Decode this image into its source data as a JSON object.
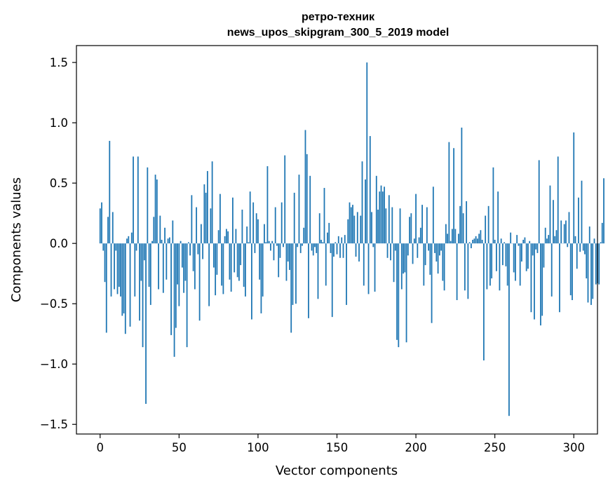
{
  "chart_data": {
    "type": "bar",
    "title": "ретро-техник",
    "subtitle": "news_upos_skipgram_300_5_2019 model",
    "xlabel": "Vector components",
    "ylabel": "Components values",
    "xlim": [
      -15,
      315
    ],
    "ylim": [
      -1.58,
      1.64
    ],
    "xticks": [
      0,
      50,
      100,
      150,
      200,
      250,
      300
    ],
    "xtick_labels": [
      "0",
      "50",
      "100",
      "150",
      "200",
      "250",
      "300"
    ],
    "yticks": [
      -1.5,
      -1.0,
      -0.5,
      0.0,
      0.5,
      1.0,
      1.5
    ],
    "ytick_labels": [
      "−1.5",
      "−1.0",
      "−0.5",
      "0.0",
      "0.5",
      "1.0",
      "1.5"
    ],
    "grid": false,
    "bar_color": "#1f77b4",
    "x_start": 0,
    "values": [
      0.29,
      0.34,
      -0.06,
      -0.32,
      -0.74,
      0.22,
      0.85,
      -0.44,
      0.26,
      -0.38,
      -0.06,
      -0.42,
      -0.36,
      -0.44,
      -0.6,
      -0.58,
      -0.75,
      0.04,
      0.06,
      -0.69,
      0.09,
      0.72,
      -0.44,
      -0.06,
      0.72,
      -0.64,
      -0.31,
      -0.86,
      -0.14,
      -1.33,
      0.63,
      -0.36,
      -0.51,
      0.02,
      0.22,
      0.57,
      0.53,
      -0.38,
      0.23,
      0.03,
      -0.41,
      0.13,
      -0.3,
      0.04,
      0.05,
      -0.76,
      0.19,
      -0.94,
      -0.7,
      -0.34,
      -0.52,
      0.02,
      -0.2,
      -0.41,
      -0.31,
      -0.86,
      0.01,
      -0.1,
      0.4,
      -0.23,
      -0.38,
      0.3,
      -0.09,
      -0.64,
      0.16,
      -0.13,
      0.49,
      0.42,
      0.6,
      -0.52,
      0.29,
      0.68,
      -0.2,
      -0.43,
      -0.26,
      0.11,
      0.41,
      -0.35,
      -0.42,
      0.06,
      0.12,
      0.1,
      -0.3,
      -0.4,
      0.38,
      -0.24,
      0.12,
      -0.28,
      -0.31,
      -0.18,
      0.28,
      -0.36,
      -0.44,
      0.14,
      0.01,
      0.43,
      -0.63,
      0.34,
      -0.08,
      0.25,
      0.2,
      -0.3,
      -0.58,
      -0.44,
      0.16,
      0.01,
      0.64,
      0.02,
      -0.06,
      0.02,
      -0.14,
      0.3,
      -0.02,
      -0.28,
      -0.12,
      0.34,
      -0.03,
      0.73,
      -0.31,
      -0.15,
      -0.22,
      -0.74,
      -0.51,
      0.42,
      -0.5,
      -0.03,
      0.57,
      -0.08,
      -0.02,
      0.13,
      0.94,
      0.74,
      -0.62,
      0.56,
      -0.06,
      -0.1,
      -0.03,
      -0.08,
      -0.46,
      0.25,
      0.03,
      0.01,
      0.46,
      -0.35,
      0.09,
      0.17,
      -0.08,
      -0.61,
      -0.11,
      0.01,
      -0.09,
      0.06,
      -0.12,
      0.05,
      -0.12,
      0.07,
      -0.51,
      0.2,
      0.34,
      0.3,
      0.32,
      0.23,
      -0.11,
      0.26,
      -0.15,
      0.23,
      0.68,
      -0.35,
      0.53,
      1.5,
      -0.42,
      0.89,
      0.26,
      -0.03,
      -0.4,
      0.56,
      0.28,
      0.43,
      0.48,
      0.43,
      0.47,
      0.29,
      -0.12,
      0.4,
      -0.14,
      0.3,
      -0.32,
      -0.06,
      -0.8,
      -0.86,
      0.29,
      -0.38,
      -0.25,
      -0.24,
      -0.82,
      -0.1,
      0.22,
      0.25,
      -0.17,
      0.04,
      0.41,
      -0.12,
      0.05,
      0.13,
      0.32,
      -0.35,
      -0.18,
      0.3,
      -0.06,
      -0.26,
      -0.66,
      0.47,
      -0.08,
      -0.15,
      -0.25,
      -0.1,
      -0.06,
      -0.31,
      -0.39,
      0.16,
      0.08,
      0.84,
      0.02,
      0.12,
      0.79,
      0.12,
      -0.47,
      0.08,
      0.31,
      0.96,
      0.25,
      -0.39,
      0.35,
      -0.46,
      0.01,
      -0.04,
      0.03,
      0.04,
      0.06,
      0.04,
      0.08,
      0.11,
      0.03,
      -0.97,
      0.23,
      -0.38,
      0.31,
      -0.35,
      -0.29,
      0.63,
      0.03,
      -0.23,
      0.43,
      -0.39,
      0.04,
      -0.18,
      0.01,
      -0.19,
      -0.35,
      -1.43,
      0.09,
      0.0,
      -0.24,
      -0.31,
      0.07,
      -0.02,
      -0.35,
      -0.15,
      0.03,
      0.05,
      -0.23,
      -0.21,
      0.02,
      -0.57,
      -0.1,
      -0.63,
      -0.05,
      -0.08,
      0.69,
      -0.68,
      -0.6,
      -0.2,
      0.13,
      0.04,
      0.07,
      0.48,
      -0.44,
      0.36,
      0.06,
      0.11,
      0.72,
      -0.57,
      0.19,
      0.0,
      0.16,
      0.19,
      -0.03,
      0.26,
      -0.43,
      -0.47,
      0.92,
      0.06,
      -0.21,
      0.38,
      -0.07,
      0.52,
      -0.06,
      -0.09,
      -0.29,
      -0.49,
      0.14,
      -0.51,
      -0.46,
      0.04,
      -0.34,
      -0.33,
      -0.34,
      0.01,
      0.17,
      0.54
    ]
  }
}
